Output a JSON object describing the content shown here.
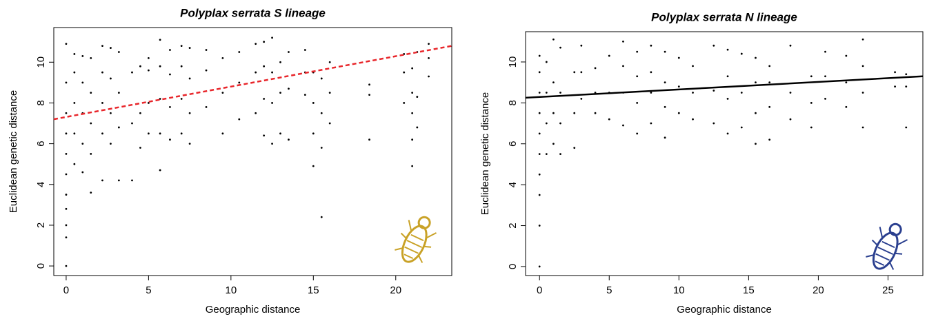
{
  "chart_data": [
    {
      "type": "scatter",
      "title": "Polyplax serrata S lineage",
      "x_label": "Geographic distance",
      "y_label": "Euclidean genetic distance",
      "xlim": [
        -0.75,
        23.4
      ],
      "ylim": [
        -0.47,
        11.7
      ],
      "xticks": [
        0,
        5,
        10,
        15,
        20
      ],
      "yticks": [
        0,
        2,
        4,
        6,
        8,
        10
      ],
      "color": "#000000",
      "x": [
        0,
        0,
        0,
        0,
        0,
        0,
        0,
        0,
        0,
        0,
        0,
        0.5,
        0.5,
        0.5,
        0.5,
        0.5,
        1,
        1,
        1,
        1,
        1,
        1.5,
        1.5,
        1.5,
        1.5,
        1.5,
        2.2,
        2.2,
        2.2,
        2.2,
        2.2,
        2.7,
        2.7,
        2.7,
        2.7,
        3.2,
        3.2,
        3.2,
        3.2,
        4,
        4,
        4,
        4.5,
        4.5,
        4.5,
        5,
        5,
        5,
        5,
        5.7,
        5.7,
        5.7,
        5.7,
        5.7,
        6.3,
        6.3,
        6.3,
        6.3,
        7,
        7,
        7,
        7,
        7.5,
        7.5,
        7.5,
        7.5,
        8.5,
        8.5,
        8.5,
        9.5,
        9.5,
        9.5,
        10.5,
        10.5,
        10.5,
        11.5,
        11.5,
        11.5,
        12,
        12,
        12,
        12,
        12.5,
        12.5,
        12.5,
        12.5,
        13,
        13,
        13,
        13.5,
        13.5,
        13.5,
        14.5,
        14.5,
        14.5,
        15,
        15,
        15,
        15,
        15.5,
        15.5,
        15.5,
        15.5,
        16,
        16,
        16,
        18.4,
        18.4,
        18.4,
        20.5,
        20.5,
        20.5,
        21,
        21,
        21,
        21,
        21,
        21.3,
        21.3,
        21.3,
        22,
        22,
        22
      ],
      "values": [
        0,
        1.4,
        2,
        2.8,
        3.5,
        4.5,
        5.5,
        6.5,
        7.5,
        9,
        10.9,
        5,
        6.5,
        8,
        9.5,
        10.4,
        4.6,
        6,
        7.5,
        9,
        10.3,
        3.6,
        5.5,
        7,
        8.5,
        10.2,
        4.2,
        6.5,
        8,
        9.5,
        10.8,
        6,
        7.5,
        9.2,
        10.7,
        4.2,
        6.8,
        8.5,
        10.5,
        4.2,
        7,
        9.5,
        5.8,
        7.5,
        9.8,
        6.5,
        8,
        9.6,
        10.2,
        4.7,
        6.5,
        8.2,
        9.8,
        11.1,
        6.2,
        7.8,
        9.4,
        10.6,
        6.5,
        8.2,
        9.8,
        10.8,
        6,
        7.5,
        9.2,
        10.7,
        7.8,
        9.6,
        10.6,
        6.5,
        8.5,
        10.2,
        7.2,
        9,
        10.5,
        7.5,
        9.5,
        10.9,
        6.4,
        8.2,
        9.8,
        11,
        6,
        8,
        9.5,
        11.2,
        6.5,
        8.5,
        10,
        6.2,
        8.7,
        10.5,
        8.4,
        9.5,
        10.6,
        4.9,
        6.5,
        8,
        9.5,
        2.4,
        5.8,
        7.5,
        9.2,
        7,
        8.5,
        10,
        6.2,
        8.4,
        8.9,
        8,
        9.5,
        10.4,
        4.9,
        6.2,
        7.5,
        8.5,
        9.7,
        6.8,
        8.3,
        10.5,
        9.3,
        10.2,
        10.9
      ],
      "trend": {
        "x": [
          -0.75,
          23.4
        ],
        "values": [
          7.2,
          10.8
        ],
        "color": "#e8262b",
        "dashed": true
      },
      "icon_color": "#c9a227"
    },
    {
      "type": "scatter",
      "title": "Polyplax serrata N lineage",
      "x_label": "Geographic distance",
      "y_label": "Euclidean genetic distance",
      "xlim": [
        -1.0,
        27.5
      ],
      "ylim": [
        -0.44,
        11.48
      ],
      "xticks": [
        0,
        5,
        10,
        15,
        20,
        25
      ],
      "yticks": [
        0,
        2,
        4,
        6,
        8,
        10
      ],
      "color": "#000000",
      "x": [
        0,
        0,
        0,
        0,
        0,
        0,
        0,
        0,
        0,
        0,
        0.5,
        0.5,
        0.5,
        0.5,
        1,
        1,
        1,
        1,
        1.5,
        1.5,
        1.5,
        1.5,
        2.5,
        2.5,
        2.5,
        3,
        3,
        3,
        4,
        4,
        4,
        5,
        5,
        5,
        6,
        6,
        6,
        6,
        7,
        7,
        7,
        7,
        8,
        8,
        8,
        8,
        9,
        9,
        9,
        9,
        10,
        10,
        10,
        11,
        11,
        11,
        12.5,
        12.5,
        12.5,
        13.5,
        13.5,
        13.5,
        13.5,
        14.5,
        14.5,
        14.5,
        15.5,
        15.5,
        15.5,
        15.5,
        16.5,
        16.5,
        16.5,
        16.5,
        18,
        18,
        18,
        19.5,
        19.5,
        19.5,
        20.5,
        20.5,
        20.5,
        22,
        22,
        22,
        23.2,
        23.2,
        23.2,
        23.2,
        25.5,
        25.5,
        26.3,
        26.3,
        26.3
      ],
      "values": [
        0,
        2,
        3.5,
        4.5,
        5.5,
        6.5,
        7.5,
        8.5,
        9.5,
        10.3,
        5.5,
        7,
        8.5,
        10,
        6,
        7.5,
        9,
        11.1,
        5.5,
        7,
        8.5,
        10.7,
        5.8,
        7.5,
        9.5,
        8.2,
        9.5,
        10.8,
        7.5,
        8.5,
        9.7,
        7.2,
        8.5,
        10.3,
        6.9,
        8.5,
        9.8,
        11,
        6.5,
        8,
        9.3,
        10.5,
        7,
        8.5,
        9.5,
        10.8,
        6.3,
        7.8,
        9,
        10.5,
        7.5,
        8.8,
        10.2,
        7.2,
        8.5,
        9.8,
        7,
        8.6,
        10.8,
        6.5,
        8.2,
        9.3,
        10.6,
        6.8,
        8.5,
        10.4,
        6,
        7.5,
        9,
        10.2,
        6.2,
        7.8,
        9,
        9.8,
        7.2,
        8.5,
        10.8,
        6.8,
        8,
        9.3,
        8.2,
        9.3,
        10.5,
        7.8,
        9,
        10.3,
        6.8,
        8.5,
        9.8,
        11.1,
        8.8,
        9.5,
        6.8,
        8.8,
        9.4
      ],
      "trend": {
        "x": [
          -1.0,
          27.5
        ],
        "values": [
          8.25,
          9.3
        ],
        "color": "#000000",
        "dashed": false
      },
      "icon_color": "#2a3f8f"
    }
  ]
}
